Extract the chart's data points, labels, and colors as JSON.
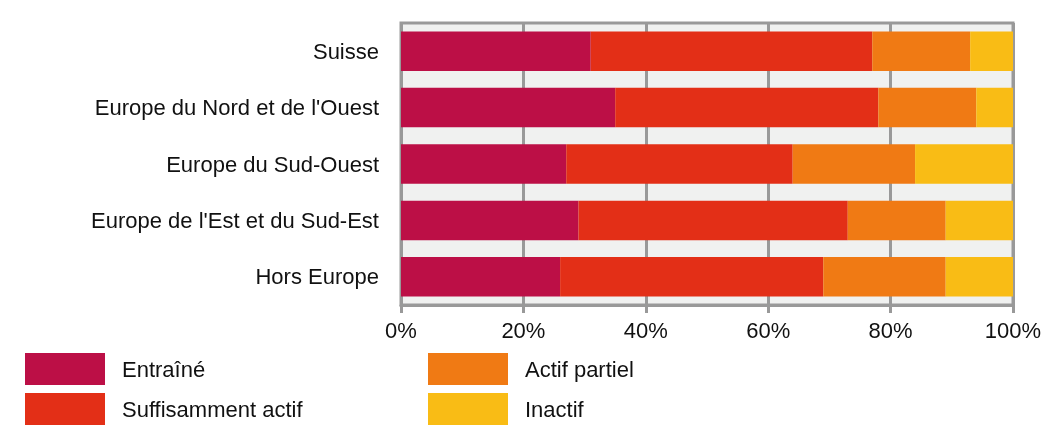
{
  "chart_data": {
    "type": "bar",
    "orientation": "horizontal",
    "stacked": true,
    "categories": [
      "Suisse",
      "Europe du Nord et de l'Ouest",
      "Europe du Sud-Ouest",
      "Europe de l'Est et du Sud-Est",
      "Hors Europe"
    ],
    "series": [
      {
        "name": "Entraîné",
        "color": "#bc0f46",
        "values": [
          31,
          35,
          27,
          29,
          26
        ]
      },
      {
        "name": "Suffisamment actif",
        "color": "#e32f17",
        "values": [
          46,
          43,
          37,
          44,
          43
        ]
      },
      {
        "name": "Actif partiel",
        "color": "#f07a14",
        "values": [
          16,
          16,
          20,
          16,
          20
        ]
      },
      {
        "name": "Inactif",
        "color": "#f9bc15",
        "values": [
          7,
          6,
          16,
          11,
          11
        ]
      }
    ],
    "xlim": [
      0,
      100
    ],
    "xticks": [
      {
        "value": 0,
        "label": "0%"
      },
      {
        "value": 20,
        "label": "20%"
      },
      {
        "value": 40,
        "label": "40%"
      },
      {
        "value": 60,
        "label": "60%"
      },
      {
        "value": 80,
        "label": "80%"
      },
      {
        "value": 100,
        "label": "100%"
      }
    ],
    "grid": "x",
    "legend": "bottom"
  }
}
